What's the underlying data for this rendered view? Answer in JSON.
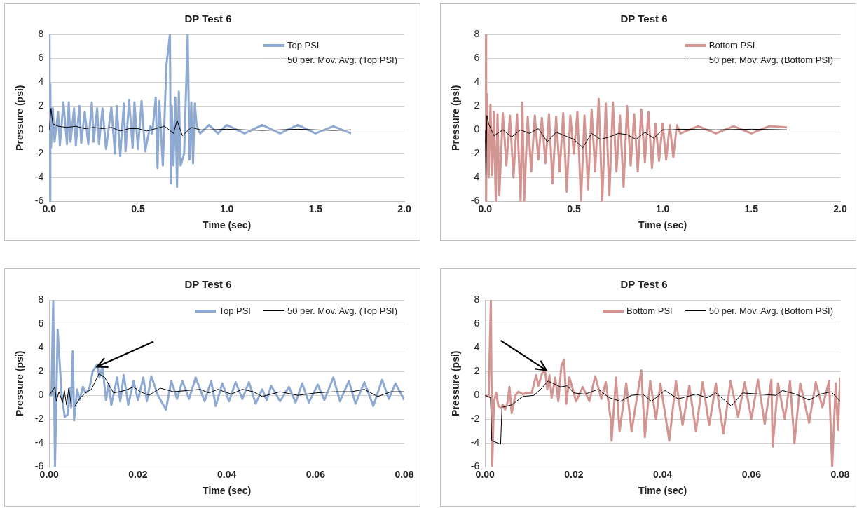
{
  "chart_data": [
    {
      "type": "line",
      "title": "DP Test 6",
      "xlabel": "Time (sec)",
      "ylabel": "Pressure (psi)",
      "xlim": [
        0,
        2
      ],
      "xticks": [
        {
          "value": 0,
          "label": "0.0"
        },
        {
          "value": 0.5,
          "label": "0.5"
        },
        {
          "value": 1,
          "label": "1.0"
        },
        {
          "value": 1.5,
          "label": "1.5"
        },
        {
          "value": 2,
          "label": "2.0"
        }
      ],
      "ylim": [
        -6,
        8
      ],
      "yticks": [
        -6,
        -4,
        -2,
        0,
        2,
        4,
        6,
        8
      ],
      "grid": "y",
      "legend": "top right",
      "series": [
        {
          "name": "Top PSI",
          "color": "#8eaad3",
          "x": [
            0,
            0.002,
            0.004,
            0.006,
            0.01,
            0.02,
            0.03,
            0.05,
            0.06,
            0.08,
            0.1,
            0.11,
            0.12,
            0.14,
            0.15,
            0.17,
            0.18,
            0.2,
            0.22,
            0.24,
            0.25,
            0.27,
            0.28,
            0.3,
            0.32,
            0.35,
            0.37,
            0.38,
            0.4,
            0.42,
            0.43,
            0.45,
            0.47,
            0.48,
            0.5,
            0.52,
            0.54,
            0.56,
            0.57,
            0.58,
            0.6,
            0.61,
            0.62,
            0.64,
            0.66,
            0.68,
            0.685,
            0.69,
            0.7,
            0.71,
            0.72,
            0.73,
            0.74,
            0.76,
            0.78,
            0.79,
            0.8,
            0.81,
            0.82,
            0.83,
            0.85,
            0.9,
            0.95,
            1.0,
            1.1,
            1.2,
            1.3,
            1.4,
            1.5,
            1.6,
            1.7
          ],
          "values": [
            0,
            8,
            -6,
            3.8,
            -1.5,
            1.8,
            -1,
            1.5,
            -1.3,
            2.3,
            -1.2,
            2.3,
            -1,
            1.8,
            -1.3,
            2,
            -1.1,
            1.5,
            -1.2,
            2.3,
            -1,
            1.8,
            -1.2,
            1.8,
            -1.6,
            1.9,
            -2,
            2,
            -2.2,
            2.2,
            -1.8,
            2.5,
            -1.5,
            2.3,
            -1.6,
            2.4,
            -1.8,
            -0.3,
            0.3,
            -0.3,
            2.7,
            -3.2,
            2.4,
            -3,
            5.4,
            8,
            -4.5,
            2,
            -3,
            2.7,
            -4.8,
            3.2,
            -3,
            -2,
            8,
            -2.5,
            2.3,
            -2.8,
            2.2,
            0.4,
            -0.3,
            0.4,
            -0.3,
            0.4,
            -0.3,
            0.4,
            -0.3,
            0.4,
            -0.3,
            0.3,
            -0.3
          ]
        },
        {
          "name": "50 per. Mov. Avg. (Top PSI)",
          "color": "#000000",
          "x": [
            0,
            0.01,
            0.02,
            0.05,
            0.1,
            0.15,
            0.2,
            0.25,
            0.3,
            0.35,
            0.4,
            0.45,
            0.5,
            0.55,
            0.6,
            0.65,
            0.7,
            0.72,
            0.75,
            0.8,
            0.85,
            0.9,
            1.0,
            1.2,
            1.4,
            1.6,
            1.7
          ],
          "values": [
            0,
            1.8,
            0.5,
            0.3,
            0.2,
            0.3,
            0.1,
            0.2,
            0.1,
            0.2,
            -0.1,
            0.1,
            0.1,
            -0.1,
            0.1,
            0.3,
            -0.3,
            0.8,
            -0.5,
            0.2,
            0,
            0,
            0.05,
            -0.05,
            0.05,
            -0.05,
            0
          ]
        }
      ]
    },
    {
      "type": "line",
      "title": "DP Test 6",
      "xlabel": "Time (sec)",
      "ylabel": "Pressure (psi)",
      "xlim": [
        0,
        2
      ],
      "xticks": [
        {
          "value": 0,
          "label": "0.0"
        },
        {
          "value": 0.5,
          "label": "0.5"
        },
        {
          "value": 1,
          "label": "1.0"
        },
        {
          "value": 1.5,
          "label": "1.5"
        },
        {
          "value": 2,
          "label": "2.0"
        }
      ],
      "ylim": [
        -6,
        8
      ],
      "yticks": [
        -6,
        -4,
        -2,
        0,
        2,
        4,
        6,
        8
      ],
      "grid": "y",
      "legend": "top right",
      "series": [
        {
          "name": "Bottom PSI",
          "color": "#d39592",
          "x": [
            0,
            0.003,
            0.006,
            0.01,
            0.02,
            0.03,
            0.04,
            0.05,
            0.06,
            0.07,
            0.08,
            0.1,
            0.12,
            0.14,
            0.16,
            0.18,
            0.2,
            0.21,
            0.22,
            0.24,
            0.26,
            0.28,
            0.3,
            0.32,
            0.34,
            0.36,
            0.38,
            0.4,
            0.42,
            0.44,
            0.46,
            0.48,
            0.5,
            0.52,
            0.54,
            0.56,
            0.58,
            0.6,
            0.62,
            0.64,
            0.66,
            0.68,
            0.7,
            0.72,
            0.74,
            0.76,
            0.78,
            0.8,
            0.82,
            0.84,
            0.86,
            0.88,
            0.9,
            0.92,
            0.94,
            0.96,
            0.98,
            1.0,
            1.02,
            1.04,
            1.06,
            1.08,
            1.1,
            1.2,
            1.3,
            1.4,
            1.5,
            1.6,
            1.7
          ],
          "values": [
            0,
            8,
            -6,
            3,
            -4,
            2.1,
            -3.8,
            1.5,
            -6,
            1.3,
            -5.5,
            1.4,
            -3,
            1.2,
            -4,
            1.3,
            -6,
            2.3,
            -6,
            1.1,
            -3.5,
            1.2,
            -2.5,
            1,
            -2.8,
            1.3,
            -4.5,
            1.1,
            -3.5,
            1.4,
            -5.2,
            1.2,
            -2,
            1.5,
            -6,
            1.2,
            -5,
            1.7,
            -3.5,
            2.6,
            -6,
            2.2,
            -5.5,
            2.3,
            -3.5,
            1.2,
            -4.8,
            2,
            -3,
            1.3,
            -3.5,
            1.7,
            -2.7,
            1.5,
            -3.2,
            0.5,
            -2.6,
            0.5,
            -2.5,
            0.4,
            -2.3,
            0.4,
            -0.3,
            0.3,
            -0.3,
            0.3,
            -0.3,
            0.3,
            0.2
          ]
        },
        {
          "name": "50 per. Mov. Avg. (Bottom PSI)",
          "color": "#000000",
          "x": [
            0,
            0.005,
            0.01,
            0.02,
            0.05,
            0.1,
            0.15,
            0.2,
            0.25,
            0.3,
            0.35,
            0.4,
            0.45,
            0.5,
            0.55,
            0.6,
            0.65,
            0.7,
            0.75,
            0.8,
            0.85,
            0.9,
            0.95,
            1.0,
            1.05,
            1.1,
            1.3,
            1.5,
            1.7
          ],
          "values": [
            0,
            -4,
            1.2,
            0.5,
            -0.5,
            0,
            -0.6,
            0,
            -0.3,
            0.1,
            -1,
            -0.2,
            -0.5,
            -0.8,
            -1.5,
            -0.3,
            -0.8,
            -0.6,
            -0.3,
            -0.4,
            -0.8,
            -0.2,
            -0.7,
            0,
            0,
            0.05,
            0,
            0.05,
            0
          ]
        }
      ]
    },
    {
      "type": "line",
      "title": "DP Test 6",
      "xlabel": "Time (sec)",
      "ylabel": "Pressure (psi)",
      "xlim": [
        0,
        0.08
      ],
      "xticks": [
        {
          "value": 0,
          "label": "0.00"
        },
        {
          "value": 0.02,
          "label": "0.02"
        },
        {
          "value": 0.04,
          "label": "0.04"
        },
        {
          "value": 0.06,
          "label": "0.06"
        },
        {
          "value": 0.08,
          "label": "0.08"
        }
      ],
      "ylim": [
        -6,
        8
      ],
      "yticks": [
        -6,
        -4,
        -2,
        0,
        2,
        4,
        6,
        8
      ],
      "grid": "y",
      "legend": "top right",
      "series": [
        {
          "name": "Top PSI",
          "color": "#8eaad3",
          "x": [
            0,
            0.0005,
            0.0009,
            0.0013,
            0.0019,
            0.0028,
            0.0035,
            0.0042,
            0.0046,
            0.0049,
            0.0053,
            0.0056,
            0.0063,
            0.0068,
            0.0076,
            0.0082,
            0.009,
            0.0098,
            0.0108,
            0.0113,
            0.012,
            0.0128,
            0.0134,
            0.014,
            0.0153,
            0.016,
            0.0168,
            0.0178,
            0.019,
            0.02,
            0.0212,
            0.022,
            0.023,
            0.0245,
            0.0263,
            0.0275,
            0.0288,
            0.03,
            0.0315,
            0.033,
            0.035,
            0.0365,
            0.0375,
            0.039,
            0.0405,
            0.042,
            0.0435,
            0.045,
            0.0465,
            0.048,
            0.049,
            0.05,
            0.052,
            0.054,
            0.0555,
            0.057,
            0.0585,
            0.0605,
            0.062,
            0.064,
            0.0655,
            0.0675,
            0.069,
            0.071,
            0.073,
            0.075,
            0.0765,
            0.078,
            0.08
          ],
          "values": [
            0,
            0,
            8,
            -6,
            5.5,
            0,
            -1.8,
            -1.6,
            0.6,
            -1,
            3.7,
            -2.1,
            0.5,
            -0.4,
            0.7,
            0.2,
            0.5,
            2,
            2.6,
            1.5,
            2.4,
            -0.4,
            1,
            -0.8,
            1.5,
            -0.5,
            1.7,
            -0.8,
            1.2,
            -0.4,
            1.5,
            -0.5,
            1.6,
            0,
            -1.2,
            1.2,
            -0.3,
            1.2,
            -0.3,
            1.5,
            -0.5,
            1.2,
            -0.9,
            1,
            -0.5,
            1.1,
            -0.3,
            1.1,
            -0.7,
            0.5,
            -0.4,
            0.8,
            -0.5,
            0.7,
            -0.6,
            1,
            -0.6,
            0.9,
            -0.4,
            1.5,
            -0.5,
            1.2,
            -0.7,
            1.1,
            -0.9,
            1.3,
            -0.3,
            1,
            -0.4
          ]
        },
        {
          "name": "50 per. Mov. Avg. (Top PSI)",
          "color": "#000000",
          "x": [
            0,
            0.0013,
            0.0016,
            0.0022,
            0.003,
            0.0034,
            0.0039,
            0.0044,
            0.005,
            0.0058,
            0.007,
            0.0085,
            0.0095,
            0.0112,
            0.0125,
            0.0145,
            0.017,
            0.019,
            0.0205,
            0.0225,
            0.025,
            0.028,
            0.031,
            0.034,
            0.036,
            0.038,
            0.041,
            0.0435,
            0.046,
            0.048,
            0.052,
            0.056,
            0.06,
            0.064,
            0.068,
            0.071,
            0.074,
            0.077,
            0.08
          ],
          "values": [
            0,
            0.7,
            -0.5,
            0.3,
            -0.6,
            0.4,
            -0.8,
            0.6,
            -0.9,
            -0.9,
            -0.2,
            0.3,
            0.5,
            1.8,
            1.5,
            0.2,
            0.4,
            0.7,
            0.3,
            0,
            0.6,
            0.3,
            0.4,
            0.5,
            0.2,
            0.5,
            0.1,
            0.5,
            0.3,
            -0.1,
            0.3,
            0,
            0.2,
            0.3,
            0.3,
            0.5,
            -0.1,
            0.3,
            0.3
          ]
        }
      ]
    },
    {
      "type": "line",
      "title": "DP Test 6",
      "xlabel": "Time (sec)",
      "ylabel": "Pressure (psi)",
      "xlim": [
        0,
        0.08
      ],
      "xticks": [
        {
          "value": 0,
          "label": "0.00"
        },
        {
          "value": 0.02,
          "label": "0.02"
        },
        {
          "value": 0.04,
          "label": "0.04"
        },
        {
          "value": 0.06,
          "label": "0.06"
        },
        {
          "value": 0.08,
          "label": "0.08"
        }
      ],
      "ylim": [
        -6,
        8
      ],
      "yticks": [
        -6,
        -4,
        -2,
        0,
        2,
        4,
        6,
        8
      ],
      "grid": "y",
      "legend": "top right",
      "series": [
        {
          "name": "Bottom PSI",
          "color": "#d39592",
          "x": [
            0,
            0.0008,
            0.0013,
            0.0016,
            0.002,
            0.0025,
            0.003,
            0.0035,
            0.004,
            0.0045,
            0.005,
            0.0055,
            0.006,
            0.0068,
            0.0075,
            0.0085,
            0.0095,
            0.0105,
            0.0115,
            0.012,
            0.0128,
            0.0135,
            0.014,
            0.0145,
            0.015,
            0.0158,
            0.0165,
            0.0172,
            0.0178,
            0.0183,
            0.019,
            0.0205,
            0.022,
            0.0235,
            0.0248,
            0.0262,
            0.0272,
            0.0283,
            0.0285,
            0.0295,
            0.0303,
            0.0318,
            0.033,
            0.0352,
            0.036,
            0.0372,
            0.0385,
            0.0395,
            0.0415,
            0.043,
            0.0445,
            0.046,
            0.0475,
            0.049,
            0.0505,
            0.052,
            0.0537,
            0.0553,
            0.057,
            0.0585,
            0.06,
            0.0615,
            0.063,
            0.0645,
            0.0648,
            0.066,
            0.0675,
            0.0687,
            0.0697,
            0.071,
            0.073,
            0.0745,
            0.076,
            0.0775,
            0.0782,
            0.079,
            0.0795,
            0.08
          ],
          "values": [
            0,
            -0.1,
            8,
            -6,
            -0.5,
            0.2,
            -0.9,
            -1,
            -0.8,
            -1.2,
            -0.7,
            0.7,
            -1.5,
            0,
            0.3,
            0.1,
            0.2,
            0.2,
            1.7,
            0.8,
            1.8,
            2.1,
            0.5,
            1.7,
            -0.2,
            1.5,
            -0.5,
            2.5,
            3,
            -0.7,
            1.5,
            -0.5,
            0.7,
            -0.5,
            1.6,
            -0.3,
            1.1,
            -2,
            -3.8,
            1.5,
            -3,
            1,
            -3,
            2.1,
            -3.5,
            1.2,
            -2,
            1,
            -3.8,
            1.2,
            -2.5,
            0.8,
            -3,
            1.1,
            -2.5,
            1,
            -3.2,
            1.2,
            -1.8,
            1.1,
            -2,
            1.3,
            -2.4,
            1.3,
            -4.3,
            1,
            -2,
            1.2,
            -4,
            1,
            -2.3,
            1.1,
            -1,
            1.2,
            -6,
            1,
            -2.9,
            1.5
          ]
        },
        {
          "name": "50 per. Mov. Avg. (Bottom PSI)",
          "color": "#000000",
          "x": [
            0,
            0.0012,
            0.0015,
            0.0035,
            0.0038,
            0.006,
            0.0085,
            0.011,
            0.0125,
            0.0142,
            0.017,
            0.0185,
            0.02,
            0.0225,
            0.0255,
            0.028,
            0.0305,
            0.033,
            0.0355,
            0.0375,
            0.0405,
            0.0435,
            0.0475,
            0.05,
            0.052,
            0.0555,
            0.058,
            0.062,
            0.0655,
            0.067,
            0.07,
            0.073,
            0.0755,
            0.078,
            0.08
          ],
          "values": [
            0,
            -0.2,
            -3.8,
            -4.1,
            -1,
            -0.8,
            -0.1,
            0,
            0.5,
            1.2,
            0.7,
            0.8,
            0.2,
            0.1,
            0.5,
            -0.2,
            -0.5,
            0,
            0.1,
            -0.5,
            0.4,
            -0.3,
            0.1,
            -0.2,
            0.2,
            -0.9,
            0.2,
            0.1,
            0,
            0.4,
            0.1,
            -0.4,
            0.1,
            0.3,
            -0.5
          ]
        }
      ]
    }
  ]
}
